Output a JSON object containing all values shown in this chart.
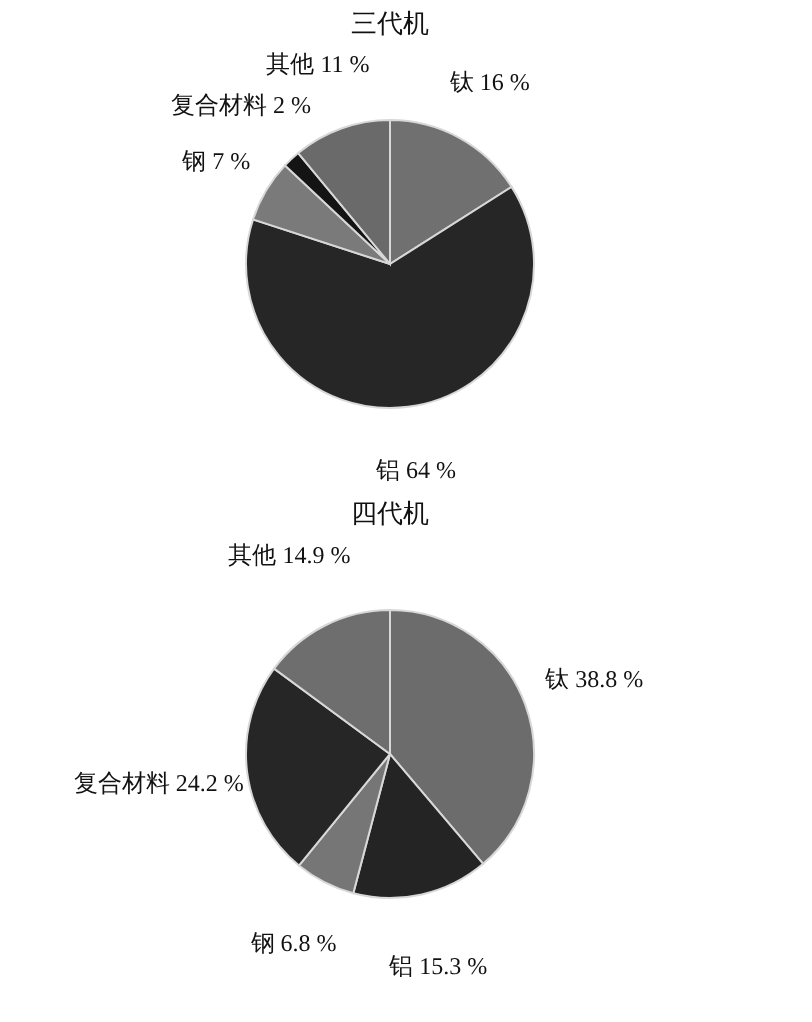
{
  "chart_data": [
    {
      "type": "pie",
      "title": "三代机",
      "categories": [
        "钛",
        "铝",
        "钢",
        "复合材料",
        "其他"
      ],
      "values": [
        16,
        64,
        7,
        2,
        11
      ],
      "value_labels": [
        "16 %",
        "64 %",
        "7 %",
        "2 %",
        "11 %"
      ],
      "colors": [
        "#707070",
        "#262626",
        "#7a7a7a",
        "#141414",
        "#6a6a6a"
      ]
    },
    {
      "type": "pie",
      "title": "四代机",
      "categories": [
        "钛",
        "铝",
        "钢",
        "复合材料",
        "其他"
      ],
      "values": [
        38.8,
        15.3,
        6.8,
        24.2,
        14.9
      ],
      "value_labels": [
        "38.8 %",
        "15.3 %",
        "6.8 %",
        "24.2 %",
        "14.9 %"
      ],
      "colors": [
        "#6c6c6c",
        "#242424",
        "#767676",
        "#262626",
        "#6e6e6e"
      ]
    }
  ]
}
